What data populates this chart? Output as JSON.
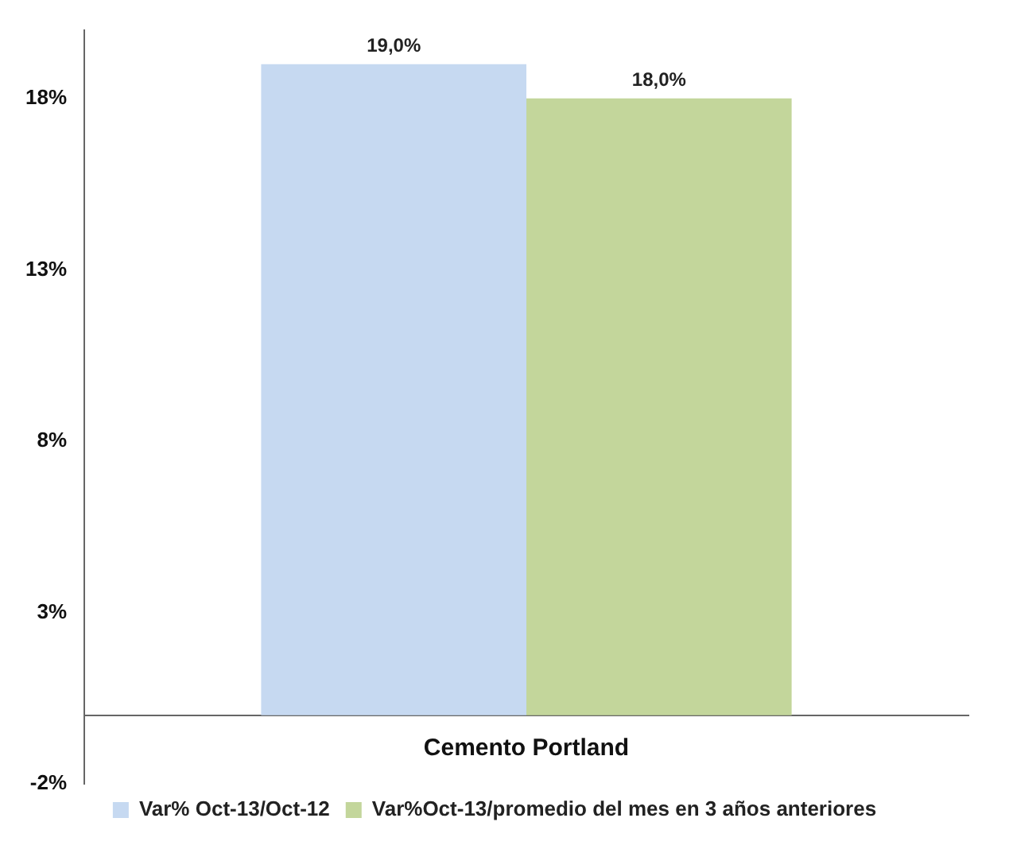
{
  "chart_data": {
    "type": "bar",
    "categories": [
      "Cemento Portland"
    ],
    "series": [
      {
        "name": "Var% Oct-13/Oct-12",
        "color": "#c6d9f1",
        "values": [
          19.0
        ],
        "value_labels": [
          "19,0%"
        ]
      },
      {
        "name": "Var%Oct-13/promedio del mes en 3 años anteriores",
        "color": "#c3d69b",
        "values": [
          18.0
        ],
        "value_labels": [
          "18,0%"
        ]
      }
    ],
    "ylim": [
      -2,
      20
    ],
    "yticks": [
      {
        "value": -2,
        "label": "-2%"
      },
      {
        "value": 3,
        "label": "3%"
      },
      {
        "value": 8,
        "label": "8%"
      },
      {
        "value": 13,
        "label": "13%"
      },
      {
        "value": 18,
        "label": "18%"
      }
    ],
    "grid": false,
    "legend": "bottom"
  }
}
